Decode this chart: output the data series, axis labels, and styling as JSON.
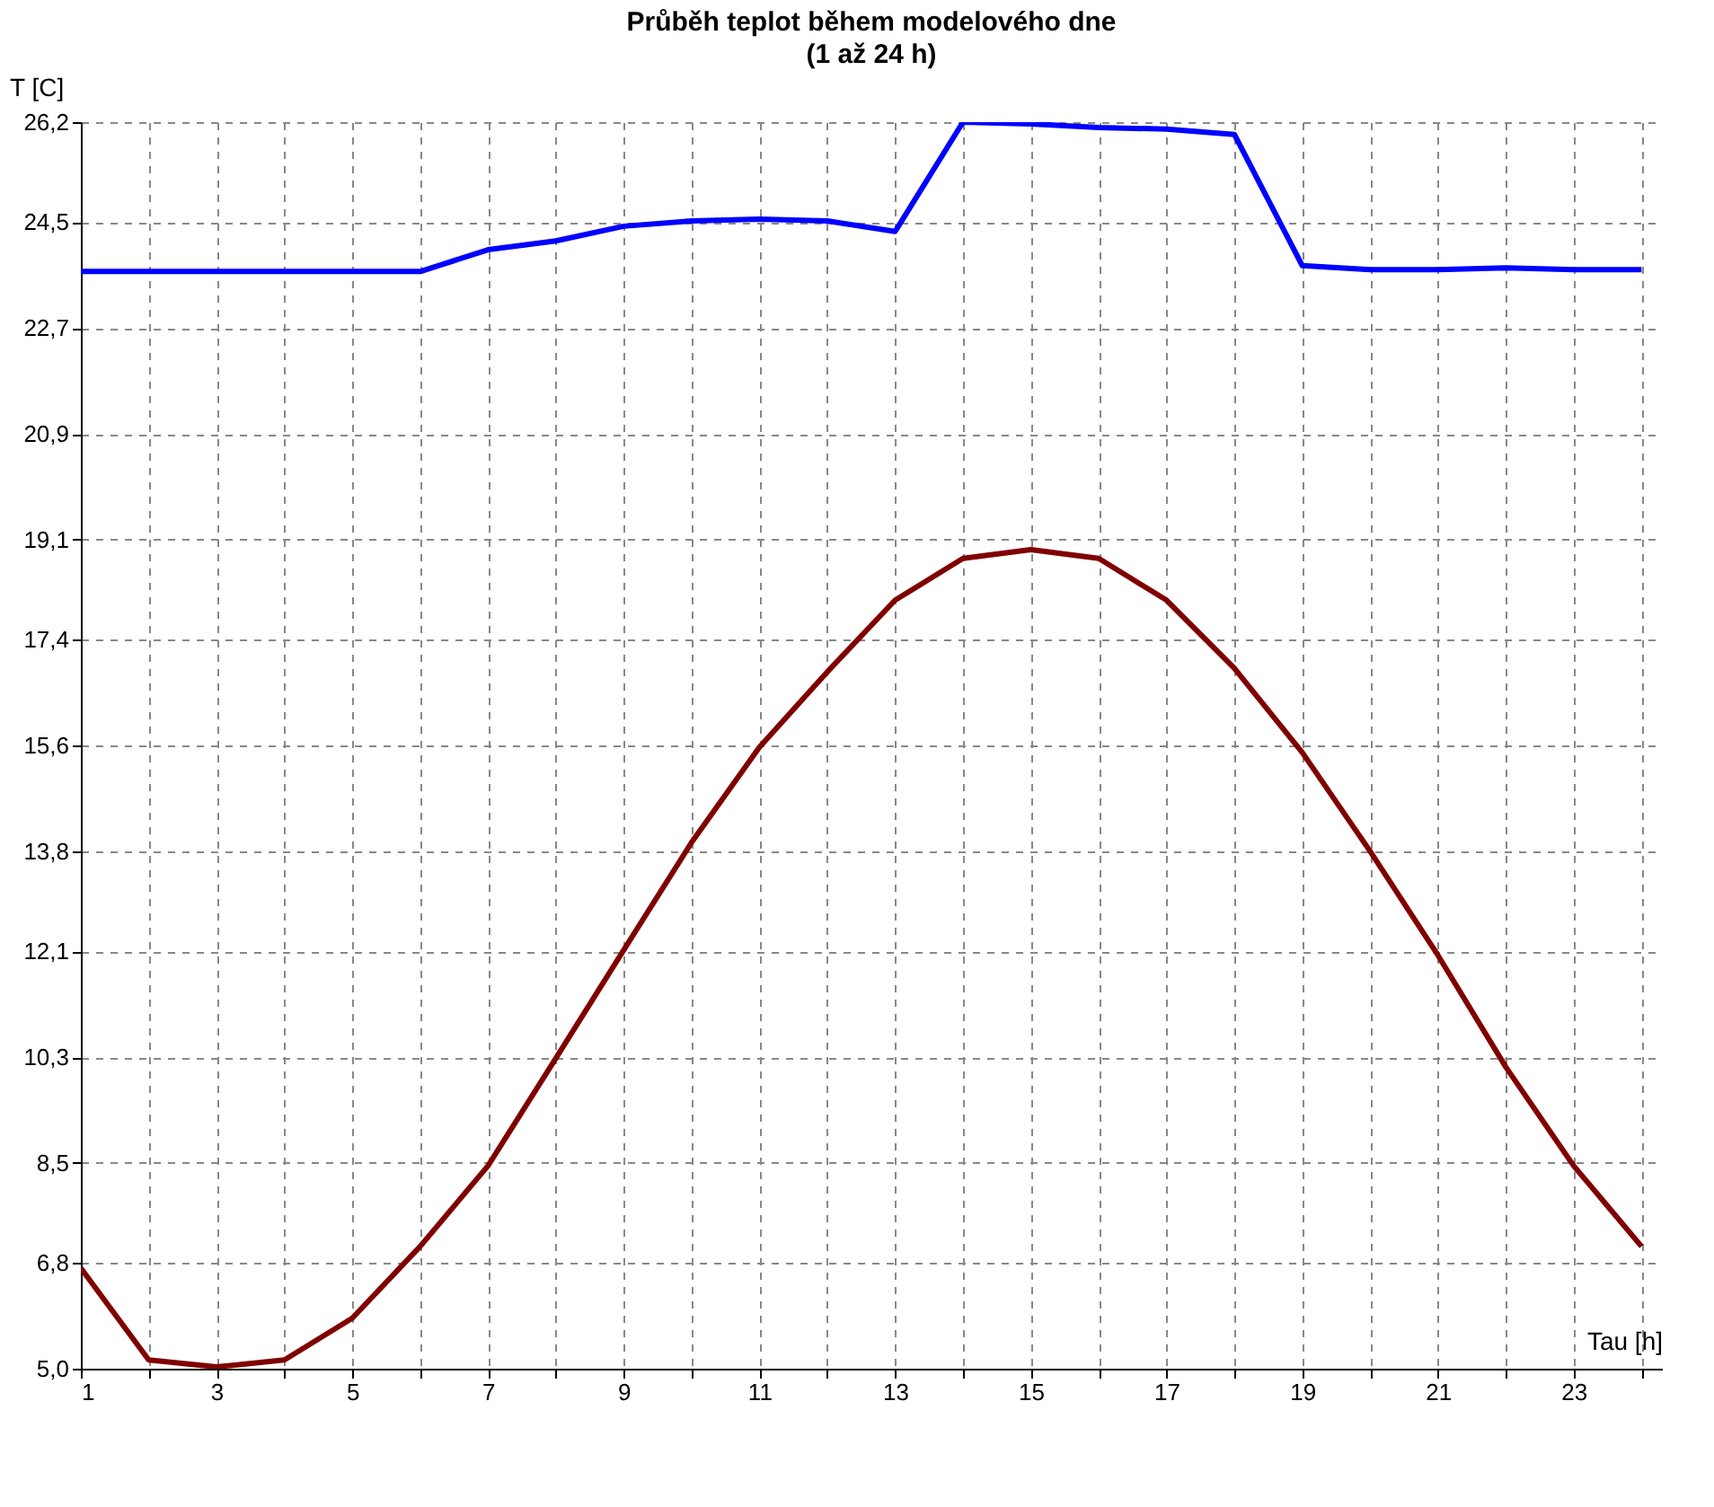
{
  "chart_data": {
    "type": "line",
    "title": "Průběh teplot během modelového dne",
    "subtitle": "(1 až 24 h)",
    "xlabel": "Tau [h]",
    "ylabel": "T [C]",
    "x": [
      1,
      2,
      3,
      4,
      5,
      6,
      7,
      8,
      9,
      10,
      11,
      12,
      13,
      14,
      15,
      16,
      17,
      18,
      19,
      20,
      21,
      22,
      23,
      24
    ],
    "series": [
      {
        "color": "#0000ff",
        "values": [
          23.66,
          23.66,
          23.66,
          23.66,
          23.66,
          23.66,
          24.03,
          24.18,
          24.43,
          24.52,
          24.55,
          24.52,
          24.34,
          26.2,
          26.17,
          26.11,
          26.08,
          25.99,
          23.76,
          23.69,
          23.69,
          23.72,
          23.69,
          23.69
        ]
      },
      {
        "color": "#800000",
        "values": [
          6.71,
          5.15,
          5.03,
          5.15,
          5.86,
          7.08,
          8.45,
          10.28,
          12.12,
          13.95,
          15.57,
          16.85,
          18.07,
          18.78,
          18.93,
          18.78,
          18.07,
          16.91,
          15.48,
          13.8,
          12.03,
          10.13,
          8.45,
          7.08
        ]
      }
    ],
    "xlim": [
      1,
      24.3
    ],
    "xticks": [
      1,
      {
        "value": 2,
        "label": null
      },
      3,
      {
        "value": 4,
        "label": null
      },
      5,
      {
        "value": 6,
        "label": null
      },
      7,
      {
        "value": 8,
        "label": null
      },
      9,
      {
        "value": 10,
        "label": null
      },
      11,
      {
        "value": 12,
        "label": null
      },
      13,
      {
        "value": 14,
        "label": null
      },
      15,
      {
        "value": 16,
        "label": null
      },
      17,
      {
        "value": 18,
        "label": null
      },
      19,
      {
        "value": 20,
        "label": null
      },
      21,
      {
        "value": 22,
        "label": null
      },
      23,
      {
        "value": 24,
        "label": null
      }
    ],
    "ylim": [
      5.0,
      26.2
    ],
    "yticks": [
      {
        "value": 5.0,
        "label": "5,0"
      },
      {
        "value": 6.8,
        "label": "6,8"
      },
      {
        "value": 8.5,
        "label": "8,5"
      },
      {
        "value": 10.3,
        "label": "10,3"
      },
      {
        "value": 12.1,
        "label": "12,1"
      },
      {
        "value": 13.8,
        "label": "13,8"
      },
      {
        "value": 15.6,
        "label": "15,6"
      },
      {
        "value": 17.4,
        "label": "17,4"
      },
      {
        "value": 19.1,
        "label": "19,1"
      },
      {
        "value": 20.9,
        "label": "20,9"
      },
      {
        "value": 22.7,
        "label": "22,7"
      },
      {
        "value": 24.5,
        "label": "24,5"
      },
      {
        "value": 26.2,
        "label": "26,2"
      }
    ],
    "grid": true,
    "legend": false,
    "marker": "none",
    "line_style": "solid"
  }
}
